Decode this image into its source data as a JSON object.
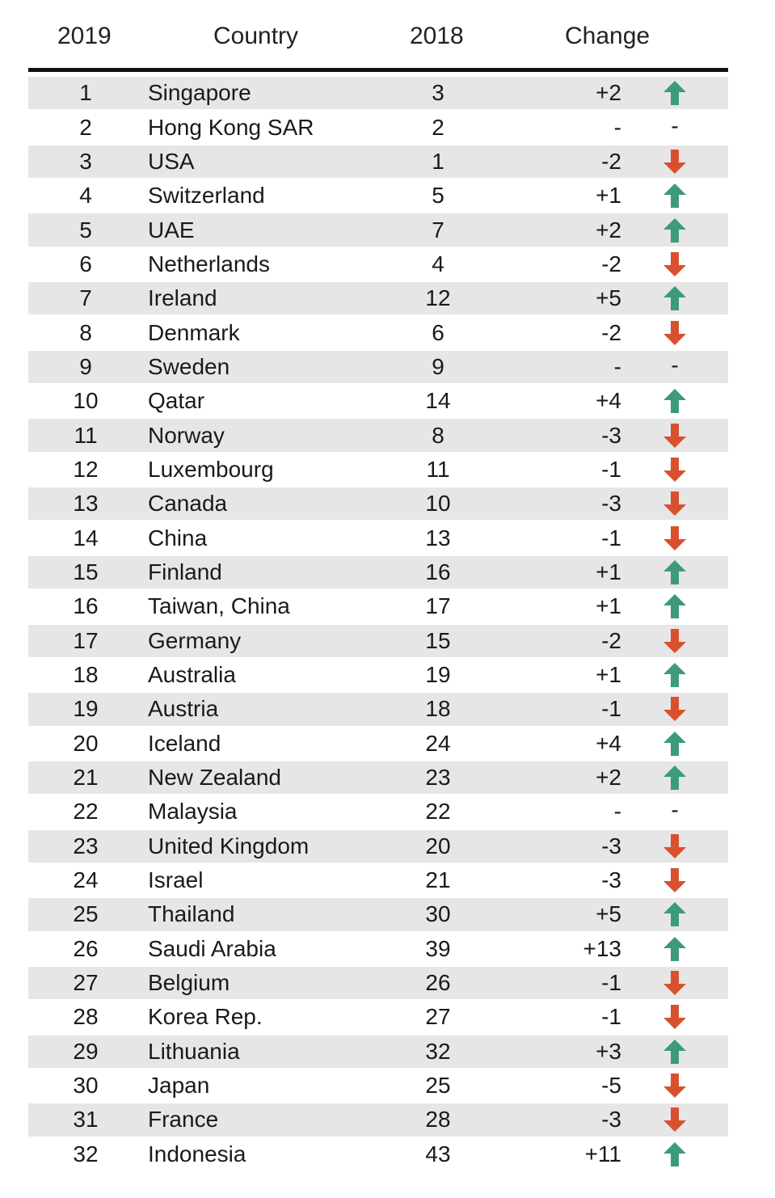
{
  "headers": {
    "rank_2019": "2019",
    "country": "Country",
    "rank_2018": "2018",
    "change": "Change"
  },
  "colors": {
    "up": "#3d9b7a",
    "down": "#d9502e",
    "shade": "#e6e6e6",
    "rule": "#111111"
  },
  "rows": [
    {
      "rank": "1",
      "country": "Singapore",
      "prev": "3",
      "change": "+2",
      "dir": "up"
    },
    {
      "rank": "2",
      "country": "Hong Kong SAR",
      "prev": "2",
      "change": "-",
      "dir": "none"
    },
    {
      "rank": "3",
      "country": "USA",
      "prev": "1",
      "change": "-2",
      "dir": "down"
    },
    {
      "rank": "4",
      "country": "Switzerland",
      "prev": "5",
      "change": "+1",
      "dir": "up"
    },
    {
      "rank": "5",
      "country": "UAE",
      "prev": "7",
      "change": "+2",
      "dir": "up"
    },
    {
      "rank": "6",
      "country": "Netherlands",
      "prev": "4",
      "change": "-2",
      "dir": "down"
    },
    {
      "rank": "7",
      "country": "Ireland",
      "prev": "12",
      "change": "+5",
      "dir": "up"
    },
    {
      "rank": "8",
      "country": "Denmark",
      "prev": "6",
      "change": "-2",
      "dir": "down"
    },
    {
      "rank": "9",
      "country": "Sweden",
      "prev": "9",
      "change": "-",
      "dir": "none"
    },
    {
      "rank": "10",
      "country": "Qatar",
      "prev": "14",
      "change": "+4",
      "dir": "up"
    },
    {
      "rank": "11",
      "country": "Norway",
      "prev": "8",
      "change": "-3",
      "dir": "down"
    },
    {
      "rank": "12",
      "country": "Luxembourg",
      "prev": "11",
      "change": "-1",
      "dir": "down"
    },
    {
      "rank": "13",
      "country": "Canada",
      "prev": "10",
      "change": "-3",
      "dir": "down"
    },
    {
      "rank": "14",
      "country": "China",
      "prev": "13",
      "change": "-1",
      "dir": "down"
    },
    {
      "rank": "15",
      "country": "Finland",
      "prev": "16",
      "change": "+1",
      "dir": "up"
    },
    {
      "rank": "16",
      "country": "Taiwan, China",
      "prev": "17",
      "change": "+1",
      "dir": "up"
    },
    {
      "rank": "17",
      "country": "Germany",
      "prev": "15",
      "change": "-2",
      "dir": "down"
    },
    {
      "rank": "18",
      "country": "Australia",
      "prev": "19",
      "change": "+1",
      "dir": "up"
    },
    {
      "rank": "19",
      "country": "Austria",
      "prev": "18",
      "change": "-1",
      "dir": "down"
    },
    {
      "rank": "20",
      "country": "Iceland",
      "prev": "24",
      "change": "+4",
      "dir": "up"
    },
    {
      "rank": "21",
      "country": "New Zealand",
      "prev": "23",
      "change": "+2",
      "dir": "up"
    },
    {
      "rank": "22",
      "country": "Malaysia",
      "prev": "22",
      "change": "-",
      "dir": "none"
    },
    {
      "rank": "23",
      "country": "United Kingdom",
      "prev": "20",
      "change": "-3",
      "dir": "down"
    },
    {
      "rank": "24",
      "country": "Israel",
      "prev": "21",
      "change": "-3",
      "dir": "down"
    },
    {
      "rank": "25",
      "country": "Thailand",
      "prev": "30",
      "change": "+5",
      "dir": "up"
    },
    {
      "rank": "26",
      "country": "Saudi Arabia",
      "prev": "39",
      "change": "+13",
      "dir": "up"
    },
    {
      "rank": "27",
      "country": "Belgium",
      "prev": "26",
      "change": "-1",
      "dir": "down"
    },
    {
      "rank": "28",
      "country": "Korea Rep.",
      "prev": "27",
      "change": "-1",
      "dir": "down"
    },
    {
      "rank": "29",
      "country": "Lithuania",
      "prev": "32",
      "change": "+3",
      "dir": "up"
    },
    {
      "rank": "30",
      "country": "Japan",
      "prev": "25",
      "change": "-5",
      "dir": "down"
    },
    {
      "rank": "31",
      "country": "France",
      "prev": "28",
      "change": "-3",
      "dir": "down"
    },
    {
      "rank": "32",
      "country": "Indonesia",
      "prev": "43",
      "change": "+11",
      "dir": "up"
    }
  ]
}
